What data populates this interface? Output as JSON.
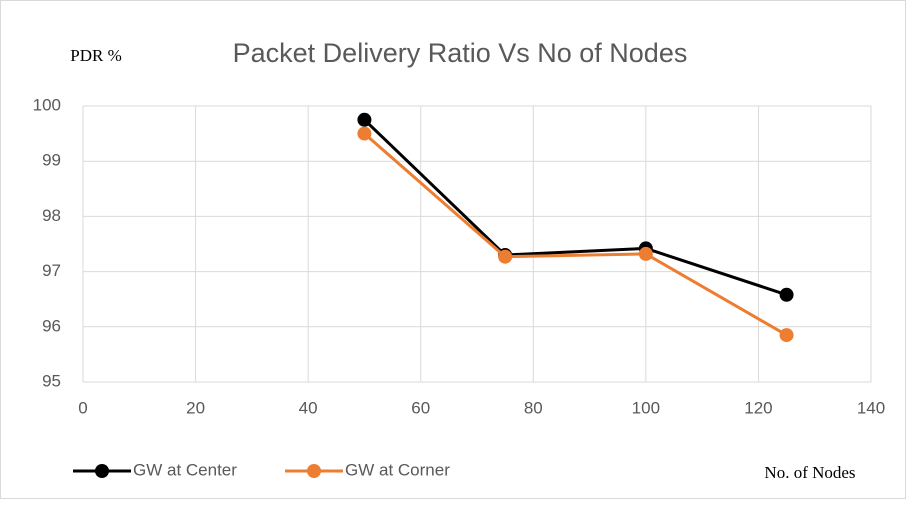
{
  "chart_data": {
    "type": "line",
    "title": "Packet Delivery Ratio Vs No of Nodes",
    "y_label": "PDR %",
    "x_label": "No. of Nodes",
    "x": [
      50,
      75,
      100,
      125
    ],
    "series": [
      {
        "name": "GW at Center",
        "color": "#000000",
        "values": [
          99.75,
          97.3,
          97.42,
          96.58
        ]
      },
      {
        "name": "GW at Corner",
        "color": "#ed7d31",
        "values": [
          99.5,
          97.27,
          97.32,
          95.85
        ]
      }
    ],
    "xlim": [
      0,
      140
    ],
    "xticks": [
      0,
      20,
      40,
      60,
      80,
      100,
      120,
      140
    ],
    "ylim": [
      95,
      100
    ],
    "yticks": [
      95,
      96,
      97,
      98,
      99,
      100
    ],
    "grid": true,
    "legend": "bottom-left"
  }
}
